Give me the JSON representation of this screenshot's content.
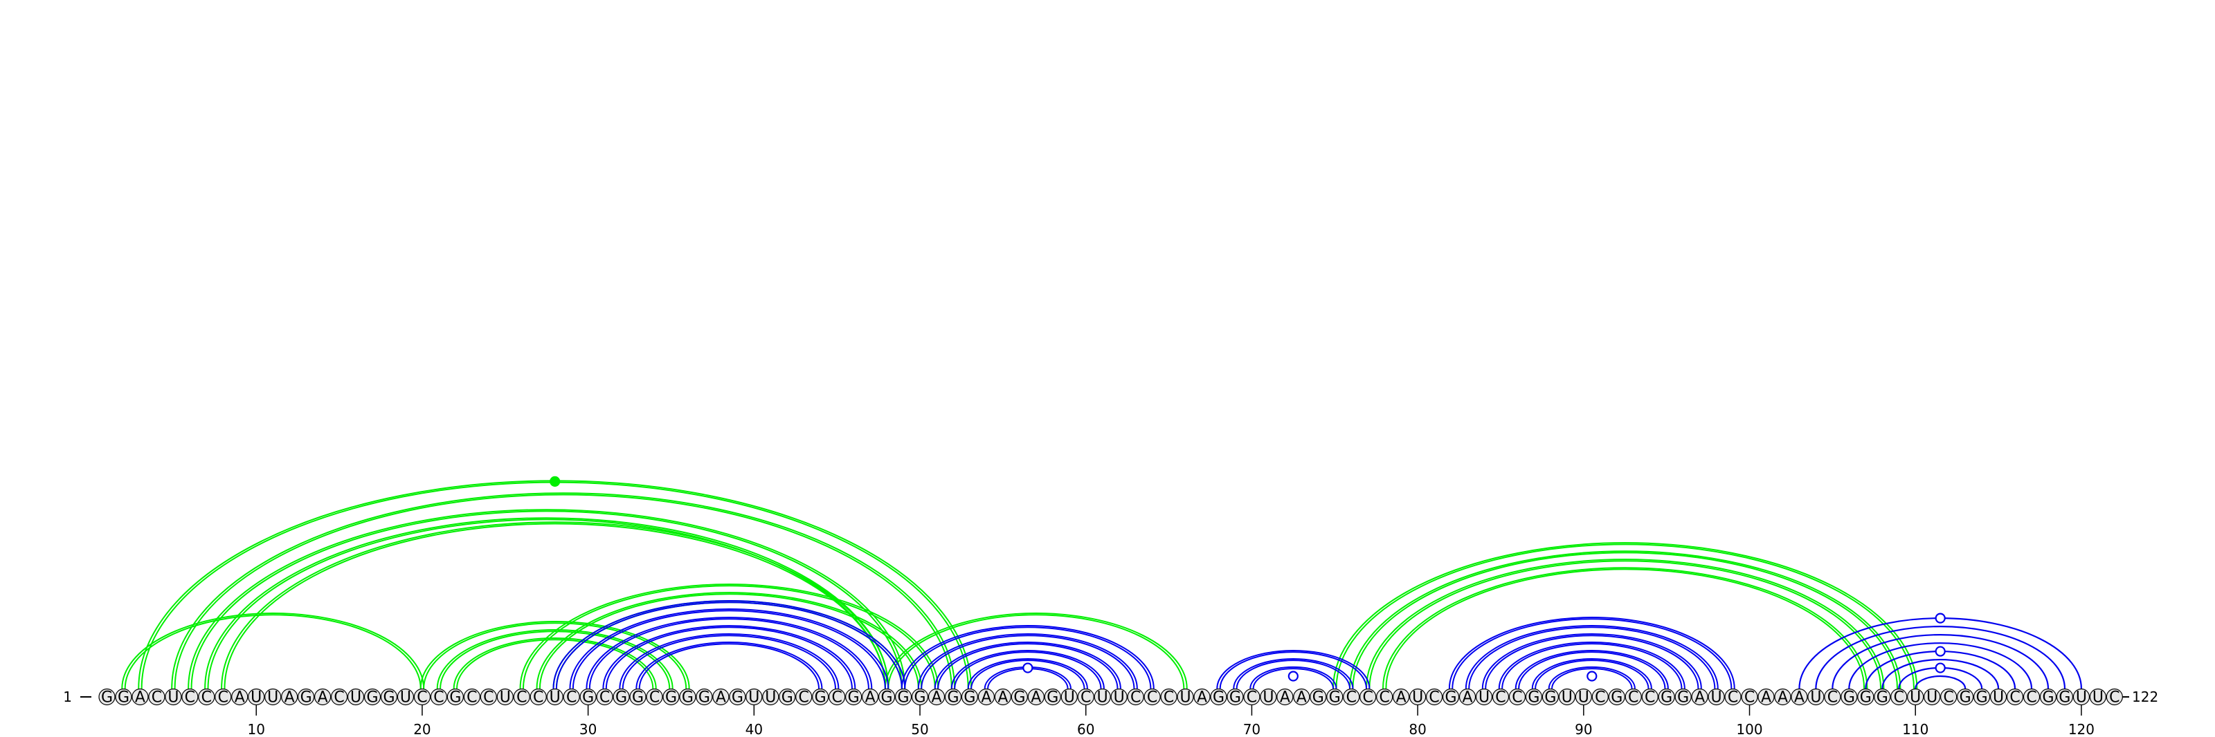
{
  "sequence": {
    "letters": "GGACUCCCAUUAGACUGGUCCGCCUCCUCGCGGCGGGAGUUGCGCGAGGGAGGAAGAGUCUUCCCUAGGCUAAGGCCCAUCGAUCCGGUUCGCCGGAUCCAAAUCGGGCUUCGGUCCGGUUC",
    "start_label": "1",
    "end_label": "122",
    "tick_labels": [
      "10",
      "20",
      "30",
      "40",
      "50",
      "60",
      "70",
      "80",
      "90",
      "100",
      "110",
      "120"
    ]
  },
  "colors": {
    "green": "#00ee00",
    "blue": "#0000ee",
    "nucleotide_fill": "#e8e8e8",
    "nucleotide_stroke": "#000000",
    "axis": "#000000"
  },
  "arc_groups": [
    {
      "color": "green",
      "style": "double",
      "start": [
        2,
        20
      ],
      "end": [
        20,
        2
      ],
      "count": 1
    },
    {
      "color": "green",
      "style": "double",
      "start": [
        3,
        53
      ],
      "end": [
        53,
        3
      ],
      "count": 1
    },
    {
      "color": "green",
      "style": "double",
      "start": [
        5,
        52
      ],
      "end": [
        52,
        5
      ],
      "count": 1
    },
    {
      "color": "green",
      "style": "double",
      "start": [
        6,
        49
      ],
      "end": [
        49,
        6
      ],
      "count": 1
    },
    {
      "color": "green",
      "style": "double",
      "start": [
        7,
        48
      ],
      "end": [
        48,
        7
      ],
      "count": 1
    },
    {
      "color": "green",
      "style": "double",
      "start": [
        8,
        48
      ],
      "end": [
        48,
        8
      ],
      "count": 1
    },
    {
      "color": "green",
      "style": "double",
      "start": [
        20,
        36
      ],
      "end": [
        36,
        20
      ],
      "count": 3
    },
    {
      "color": "green",
      "style": "double",
      "start": [
        26,
        51
      ],
      "end": [
        51,
        26
      ],
      "count": 3
    },
    {
      "color": "green",
      "style": "double",
      "start": [
        48,
        66
      ],
      "end": [
        66,
        48
      ],
      "count": 1
    },
    {
      "color": "green",
      "style": "double",
      "start": [
        75,
        110
      ],
      "end": [
        110,
        75
      ],
      "count": 4
    },
    {
      "color": "blue",
      "style": "double",
      "start": [
        28,
        49
      ],
      "end": [
        49,
        28
      ],
      "count": 6
    },
    {
      "color": "blue",
      "style": "double",
      "start": [
        49,
        64
      ],
      "end": [
        64,
        49
      ],
      "count": 6
    },
    {
      "color": "blue",
      "style": "double",
      "start": [
        68,
        77
      ],
      "end": [
        77,
        68
      ],
      "count": 3
    },
    {
      "color": "blue",
      "style": "double",
      "start": [
        82,
        99
      ],
      "end": [
        99,
        82
      ],
      "count": 7
    },
    {
      "color": "blue",
      "style": "single",
      "start": [
        103,
        120
      ],
      "end": [
        120,
        103
      ],
      "count": 8
    }
  ],
  "markers": [
    {
      "color": "green",
      "filled": true,
      "between": [
        3,
        53
      ]
    },
    {
      "color": "blue",
      "filled": false,
      "between": [
        54,
        59
      ]
    },
    {
      "color": "blue",
      "filled": false,
      "between": [
        71,
        74
      ]
    },
    {
      "color": "blue",
      "filled": false,
      "between": [
        89,
        92
      ]
    },
    {
      "color": "blue",
      "filled": false,
      "between": [
        103,
        120
      ]
    },
    {
      "color": "blue",
      "filled": false,
      "between": [
        107,
        116
      ]
    },
    {
      "color": "blue",
      "filled": false,
      "between": [
        109,
        114
      ]
    }
  ]
}
